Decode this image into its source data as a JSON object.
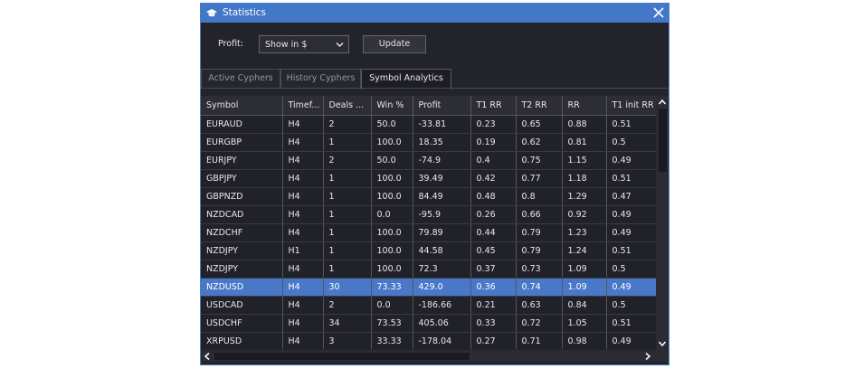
{
  "window": {
    "title": "Statistics",
    "icon": "graduation-cap-icon",
    "close_icon": "close-icon"
  },
  "filter": {
    "profit_label": "Profit:",
    "selected": "Show in $",
    "update_label": "Update"
  },
  "tabs": [
    {
      "label": "Active Cyphers"
    },
    {
      "label": "History Cyphers"
    },
    {
      "label": "Symbol Analytics"
    }
  ],
  "table": {
    "columns": [
      "Symbol",
      "Timef...",
      "Deals ...",
      "Win %",
      "Profit",
      "T1 RR",
      "T2 RR",
      "RR",
      "T1 init RR"
    ],
    "rows": [
      [
        "EURAUD",
        "H4",
        "2",
        "50.0",
        "-33.81",
        "0.23",
        "0.65",
        "0.88",
        "0.51"
      ],
      [
        "EURGBP",
        "H4",
        "1",
        "100.0",
        "18.35",
        "0.19",
        "0.62",
        "0.81",
        "0.5"
      ],
      [
        "EURJPY",
        "H4",
        "2",
        "50.0",
        "-74.9",
        "0.4",
        "0.75",
        "1.15",
        "0.49"
      ],
      [
        "GBPJPY",
        "H4",
        "1",
        "100.0",
        "39.49",
        "0.42",
        "0.77",
        "1.18",
        "0.51"
      ],
      [
        "GBPNZD",
        "H4",
        "1",
        "100.0",
        "84.49",
        "0.48",
        "0.8",
        "1.29",
        "0.47"
      ],
      [
        "NZDCAD",
        "H4",
        "1",
        "0.0",
        "-95.9",
        "0.26",
        "0.66",
        "0.92",
        "0.49"
      ],
      [
        "NZDCHF",
        "H4",
        "1",
        "100.0",
        "79.89",
        "0.44",
        "0.79",
        "1.23",
        "0.49"
      ],
      [
        "NZDJPY",
        "H1",
        "1",
        "100.0",
        "44.58",
        "0.45",
        "0.79",
        "1.24",
        "0.51"
      ],
      [
        "NZDJPY",
        "H4",
        "1",
        "100.0",
        "72.3",
        "0.37",
        "0.73",
        "1.09",
        "0.5"
      ],
      [
        "NZDUSD",
        "H4",
        "30",
        "73.33",
        "429.0",
        "0.36",
        "0.74",
        "1.09",
        "0.49"
      ],
      [
        "USDCAD",
        "H4",
        "2",
        "0.0",
        "-186.66",
        "0.21",
        "0.63",
        "0.84",
        "0.5"
      ],
      [
        "USDCHF",
        "H4",
        "34",
        "73.53",
        "405.06",
        "0.33",
        "0.72",
        "1.05",
        "0.51"
      ],
      [
        "XRPUSD",
        "H4",
        "3",
        "33.33",
        "-178.04",
        "0.27",
        "0.71",
        "0.98",
        "0.49"
      ]
    ]
  },
  "colors": {
    "accent": "#4378c8",
    "positive": "#4de0a0",
    "negative": "#e8303a"
  }
}
